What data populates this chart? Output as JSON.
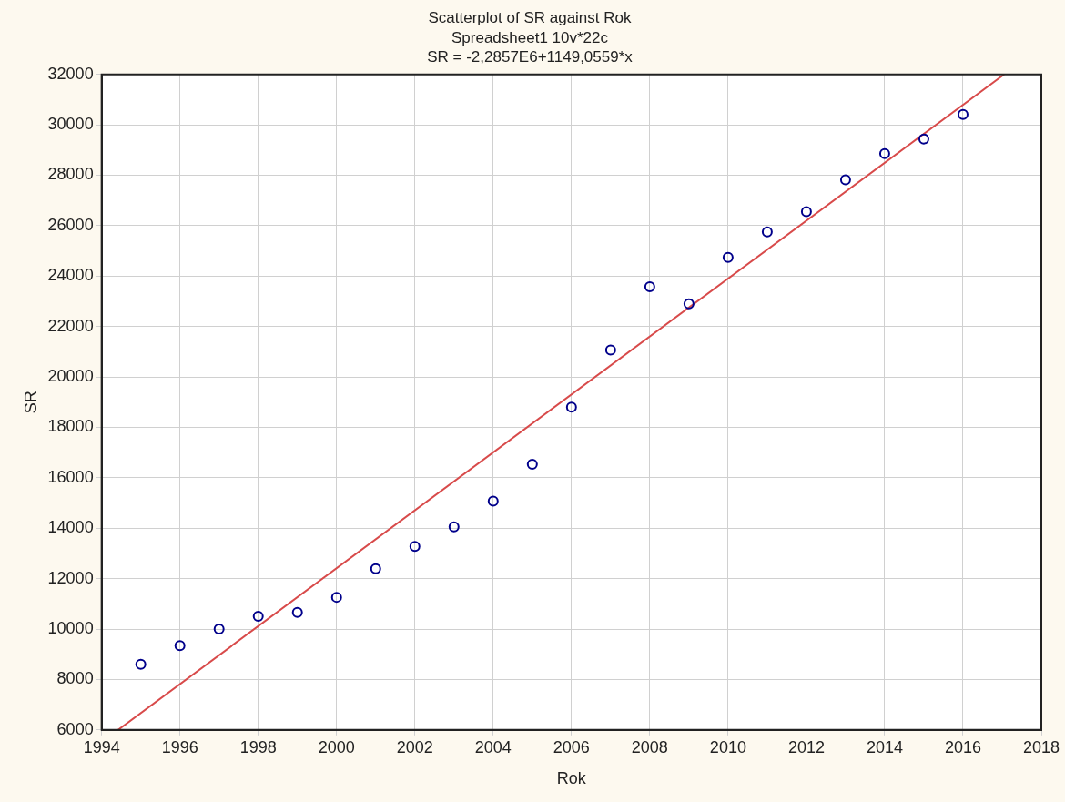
{
  "chart_data": {
    "type": "scatter",
    "title": "Scatterplot of SR against Rok",
    "subtitle": "Spreadsheet1 10v*22c",
    "annotations": [
      "SR = -2,2857E6+1149,0559*x"
    ],
    "xlabel": "Rok",
    "ylabel": "SR",
    "xlim": [
      1994,
      2018
    ],
    "xticks": [
      1994,
      1996,
      1998,
      2000,
      2002,
      2004,
      2006,
      2008,
      2010,
      2012,
      2014,
      2016,
      2018
    ],
    "ylim": [
      6000,
      32000
    ],
    "yticks": [
      6000,
      8000,
      10000,
      12000,
      14000,
      16000,
      18000,
      20000,
      22000,
      24000,
      26000,
      28000,
      30000,
      32000
    ],
    "grid": true,
    "legend": false,
    "series": [
      {
        "color": "#00008b",
        "marker": "circle",
        "x": [
          1995,
          1996,
          1997,
          1998,
          1999,
          2000,
          2001,
          2002,
          2003,
          2004,
          2005,
          2006,
          2007,
          2008,
          2009,
          2010,
          2011,
          2012,
          2013,
          2014,
          2015,
          2016
        ],
        "values": [
          8600,
          9340,
          10000,
          10510,
          10660,
          11260,
          12390,
          13280,
          14050,
          15070,
          16540,
          18800,
          21070,
          23580,
          22900,
          24740,
          25750,
          26560,
          27820,
          28860,
          29440,
          30410
        ]
      },
      {
        "type": "line",
        "color": "#d84a4a",
        "marker": "none",
        "line_style": "solid",
        "x": [
          1994.42,
          2017.05
        ],
        "values": [
          6000,
          32000
        ]
      }
    ]
  }
}
